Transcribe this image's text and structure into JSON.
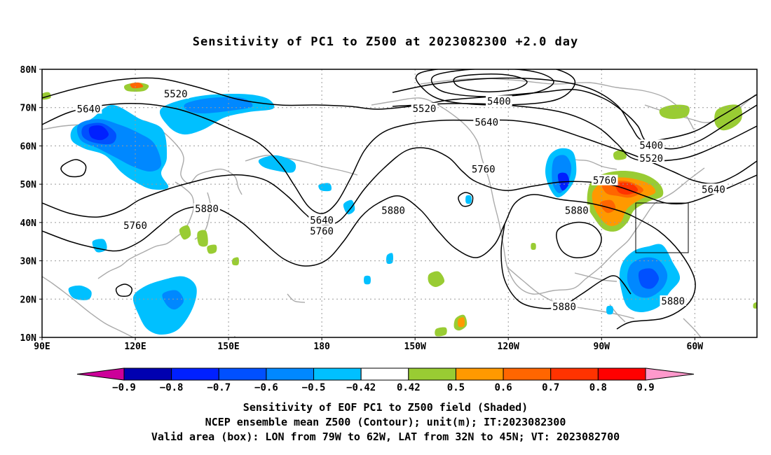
{
  "title": "Sensitivity of PC1 to Z500 at 2023082300 +2.0 day",
  "lat_labels": [
    "80N",
    "70N",
    "60N",
    "50N",
    "40N",
    "30N",
    "20N",
    "10N"
  ],
  "lon_labels": [
    "90E",
    "120E",
    "150E",
    "180",
    "150W",
    "120W",
    "90W",
    "60W"
  ],
  "contour_labels": [
    {
      "text": "5520",
      "lon": 133,
      "lat": 73.6
    },
    {
      "text": "5640",
      "lon": 105,
      "lat": 69.7
    },
    {
      "text": "5400",
      "lon": 237,
      "lat": 71.7
    },
    {
      "text": "5520",
      "lon": 213,
      "lat": 69.8
    },
    {
      "text": "5640",
      "lon": 233,
      "lat": 66.2
    },
    {
      "text": "5400",
      "lon": 286,
      "lat": 60.2
    },
    {
      "text": "5520",
      "lon": 286,
      "lat": 56.8
    },
    {
      "text": "5640",
      "lon": 306,
      "lat": 48.7
    },
    {
      "text": "5760",
      "lon": 271,
      "lat": 51.0
    },
    {
      "text": "5760",
      "lon": 232,
      "lat": 54.0
    },
    {
      "text": "5880",
      "lon": 143,
      "lat": 43.6
    },
    {
      "text": "5760",
      "lon": 120,
      "lat": 39.2
    },
    {
      "text": "5640",
      "lon": 180,
      "lat": 40.6
    },
    {
      "text": "5760",
      "lon": 180,
      "lat": 37.8
    },
    {
      "text": "5880",
      "lon": 203,
      "lat": 43.2
    },
    {
      "text": "5880",
      "lon": 262,
      "lat": 43.2
    },
    {
      "text": "5880",
      "lon": 258,
      "lat": 18.0
    },
    {
      "text": "5880",
      "lon": 293,
      "lat": 19.5
    }
  ],
  "colorbar": {
    "ticks": [
      "−0.9",
      "−0.8",
      "−0.7",
      "−0.6",
      "−0.5",
      "−0.42",
      "0.42",
      "0.5",
      "0.6",
      "0.7",
      "0.8",
      "0.9"
    ],
    "colors": [
      "#0000b0",
      "#0020ff",
      "#0050ff",
      "#0088ff",
      "#00c0ff",
      "#ffffff",
      "#99cc33",
      "#ff9900",
      "#ff6600",
      "#ff3300",
      "#ff0000"
    ],
    "under_color": "#cc0099",
    "over_color": "#ff99cc"
  },
  "captions": [
    "Sensitivity of EOF PC1 to Z500 field (Shaded)",
    "NCEP ensemble mean Z500 (Contour); unit(m); IT:2023082300",
    "Valid area (box): LON from 79W to 62W, LAT from 32N to 45N; VT: 2023082700"
  ],
  "valid_box": {
    "lon_min": 281,
    "lon_max": 298,
    "lat_min": 32,
    "lat_max": 45
  },
  "chart_data": {
    "type": "map",
    "projection": "cylindrical equidistant",
    "lon_range": [
      90,
      320
    ],
    "lat_range": [
      10,
      80
    ],
    "grid": true,
    "contour_field": "Z500 (m)",
    "contour_levels": [
      5400,
      5520,
      5640,
      5760,
      5880
    ],
    "shading_field": "Sensitivity of EOF PC1 to Z500",
    "shading_levels": [
      -0.9,
      -0.8,
      -0.7,
      -0.6,
      -0.5,
      -0.42,
      0.42,
      0.5,
      0.6,
      0.7,
      0.8,
      0.9
    ]
  }
}
